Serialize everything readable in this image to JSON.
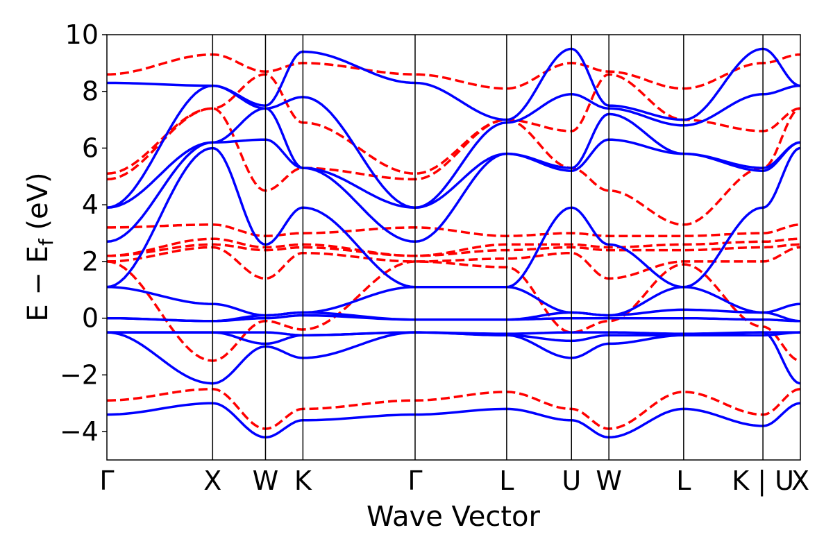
{
  "chart_data": {
    "type": "line",
    "title": "",
    "xlabel": "Wave Vector",
    "ylabel": "E − E_f (eV)",
    "ylim": [
      -5,
      10
    ],
    "grid": false,
    "legend": "none",
    "yticks": [
      -4,
      -2,
      0,
      2,
      4,
      6,
      8,
      10
    ],
    "ytick_labels": [
      "−4",
      "−2",
      "0",
      "2",
      "4",
      "6",
      "8",
      "10"
    ],
    "kpoints": [
      {
        "label": "Γ",
        "x": 0.0
      },
      {
        "label": "X",
        "x": 1.0
      },
      {
        "label": "W",
        "x": 1.5
      },
      {
        "label": "K",
        "x": 1.854
      },
      {
        "label": "Γ",
        "x": 2.915
      },
      {
        "label": "L",
        "x": 3.781
      },
      {
        "label": "U",
        "x": 4.394
      },
      {
        "label": "W",
        "x": 4.748
      },
      {
        "label": "L",
        "x": 5.455
      },
      {
        "label": "K | U",
        "x": 6.205
      },
      {
        "label": "X",
        "x": 6.559
      }
    ],
    "series": [
      {
        "style": "solid",
        "color": "#0000ff",
        "bands": [
          [
            -3.4,
            -3.0,
            -4.2,
            -3.6,
            -3.4,
            -3.2,
            -3.6,
            -4.2,
            -3.2,
            -3.8,
            -3.0
          ],
          [
            -0.5,
            -2.3,
            -1.0,
            -1.4,
            -0.5,
            -0.6,
            -1.4,
            -0.9,
            -0.6,
            -0.5,
            -2.3
          ],
          [
            -0.5,
            -0.5,
            -0.9,
            -0.6,
            -0.5,
            -0.6,
            -0.8,
            -0.6,
            -0.6,
            -0.6,
            -0.5
          ],
          [
            -0.5,
            -0.5,
            -0.5,
            -0.6,
            -0.5,
            -0.55,
            -0.5,
            -0.5,
            -0.55,
            -0.5,
            -0.5
          ],
          [
            0.0,
            -0.1,
            0.0,
            0.1,
            -0.05,
            -0.05,
            0.0,
            0.0,
            0.0,
            -0.05,
            -0.1
          ],
          [
            0.0,
            -0.1,
            0.1,
            0.2,
            -0.05,
            -0.05,
            0.2,
            0.1,
            0.3,
            0.2,
            -0.1
          ],
          [
            1.1,
            0.5,
            0.1,
            0.2,
            1.1,
            1.1,
            0.2,
            0.1,
            1.1,
            0.2,
            0.5
          ],
          [
            1.1,
            6.0,
            2.6,
            3.9,
            1.1,
            1.1,
            3.9,
            2.6,
            1.1,
            3.9,
            6.0
          ],
          [
            2.7,
            6.2,
            6.3,
            5.3,
            2.7,
            5.8,
            5.2,
            6.3,
            5.8,
            5.2,
            6.2
          ],
          [
            3.9,
            6.2,
            7.4,
            5.3,
            3.9,
            5.8,
            5.3,
            7.2,
            5.8,
            5.3,
            6.2
          ],
          [
            3.9,
            8.2,
            7.4,
            7.8,
            3.9,
            6.9,
            7.9,
            7.4,
            6.8,
            7.9,
            8.2
          ],
          [
            8.3,
            8.2,
            7.5,
            9.4,
            8.3,
            7.0,
            9.5,
            7.5,
            7.0,
            9.5,
            8.2
          ]
        ]
      },
      {
        "style": "dashed",
        "color": "#ff0000",
        "bands": [
          [
            -2.9,
            -2.5,
            -3.9,
            -3.2,
            -2.9,
            -2.6,
            -3.2,
            -3.9,
            -2.6,
            -3.4,
            -2.5
          ],
          [
            2.0,
            -1.5,
            -0.1,
            -0.4,
            2.0,
            1.8,
            -0.5,
            -0.1,
            1.9,
            -0.3,
            -1.5
          ],
          [
            2.0,
            2.5,
            1.4,
            2.3,
            2.0,
            2.1,
            2.3,
            1.4,
            2.0,
            2.0,
            2.5
          ],
          [
            2.2,
            2.6,
            2.4,
            2.5,
            2.2,
            2.4,
            2.5,
            2.4,
            2.4,
            2.5,
            2.6
          ],
          [
            2.2,
            2.8,
            2.5,
            2.6,
            2.2,
            2.6,
            2.6,
            2.5,
            2.6,
            2.7,
            2.8
          ],
          [
            3.2,
            3.3,
            2.9,
            3.0,
            3.2,
            2.9,
            3.0,
            2.9,
            2.9,
            3.0,
            3.3
          ],
          [
            4.9,
            7.4,
            4.5,
            5.3,
            4.9,
            7.0,
            5.3,
            4.5,
            3.3,
            5.3,
            7.4
          ],
          [
            5.1,
            7.4,
            8.6,
            6.9,
            5.1,
            7.0,
            6.6,
            8.6,
            7.0,
            6.6,
            7.4
          ],
          [
            8.6,
            9.3,
            8.7,
            9.0,
            8.6,
            8.1,
            9.0,
            8.7,
            8.1,
            9.0,
            9.3
          ]
        ]
      }
    ]
  }
}
